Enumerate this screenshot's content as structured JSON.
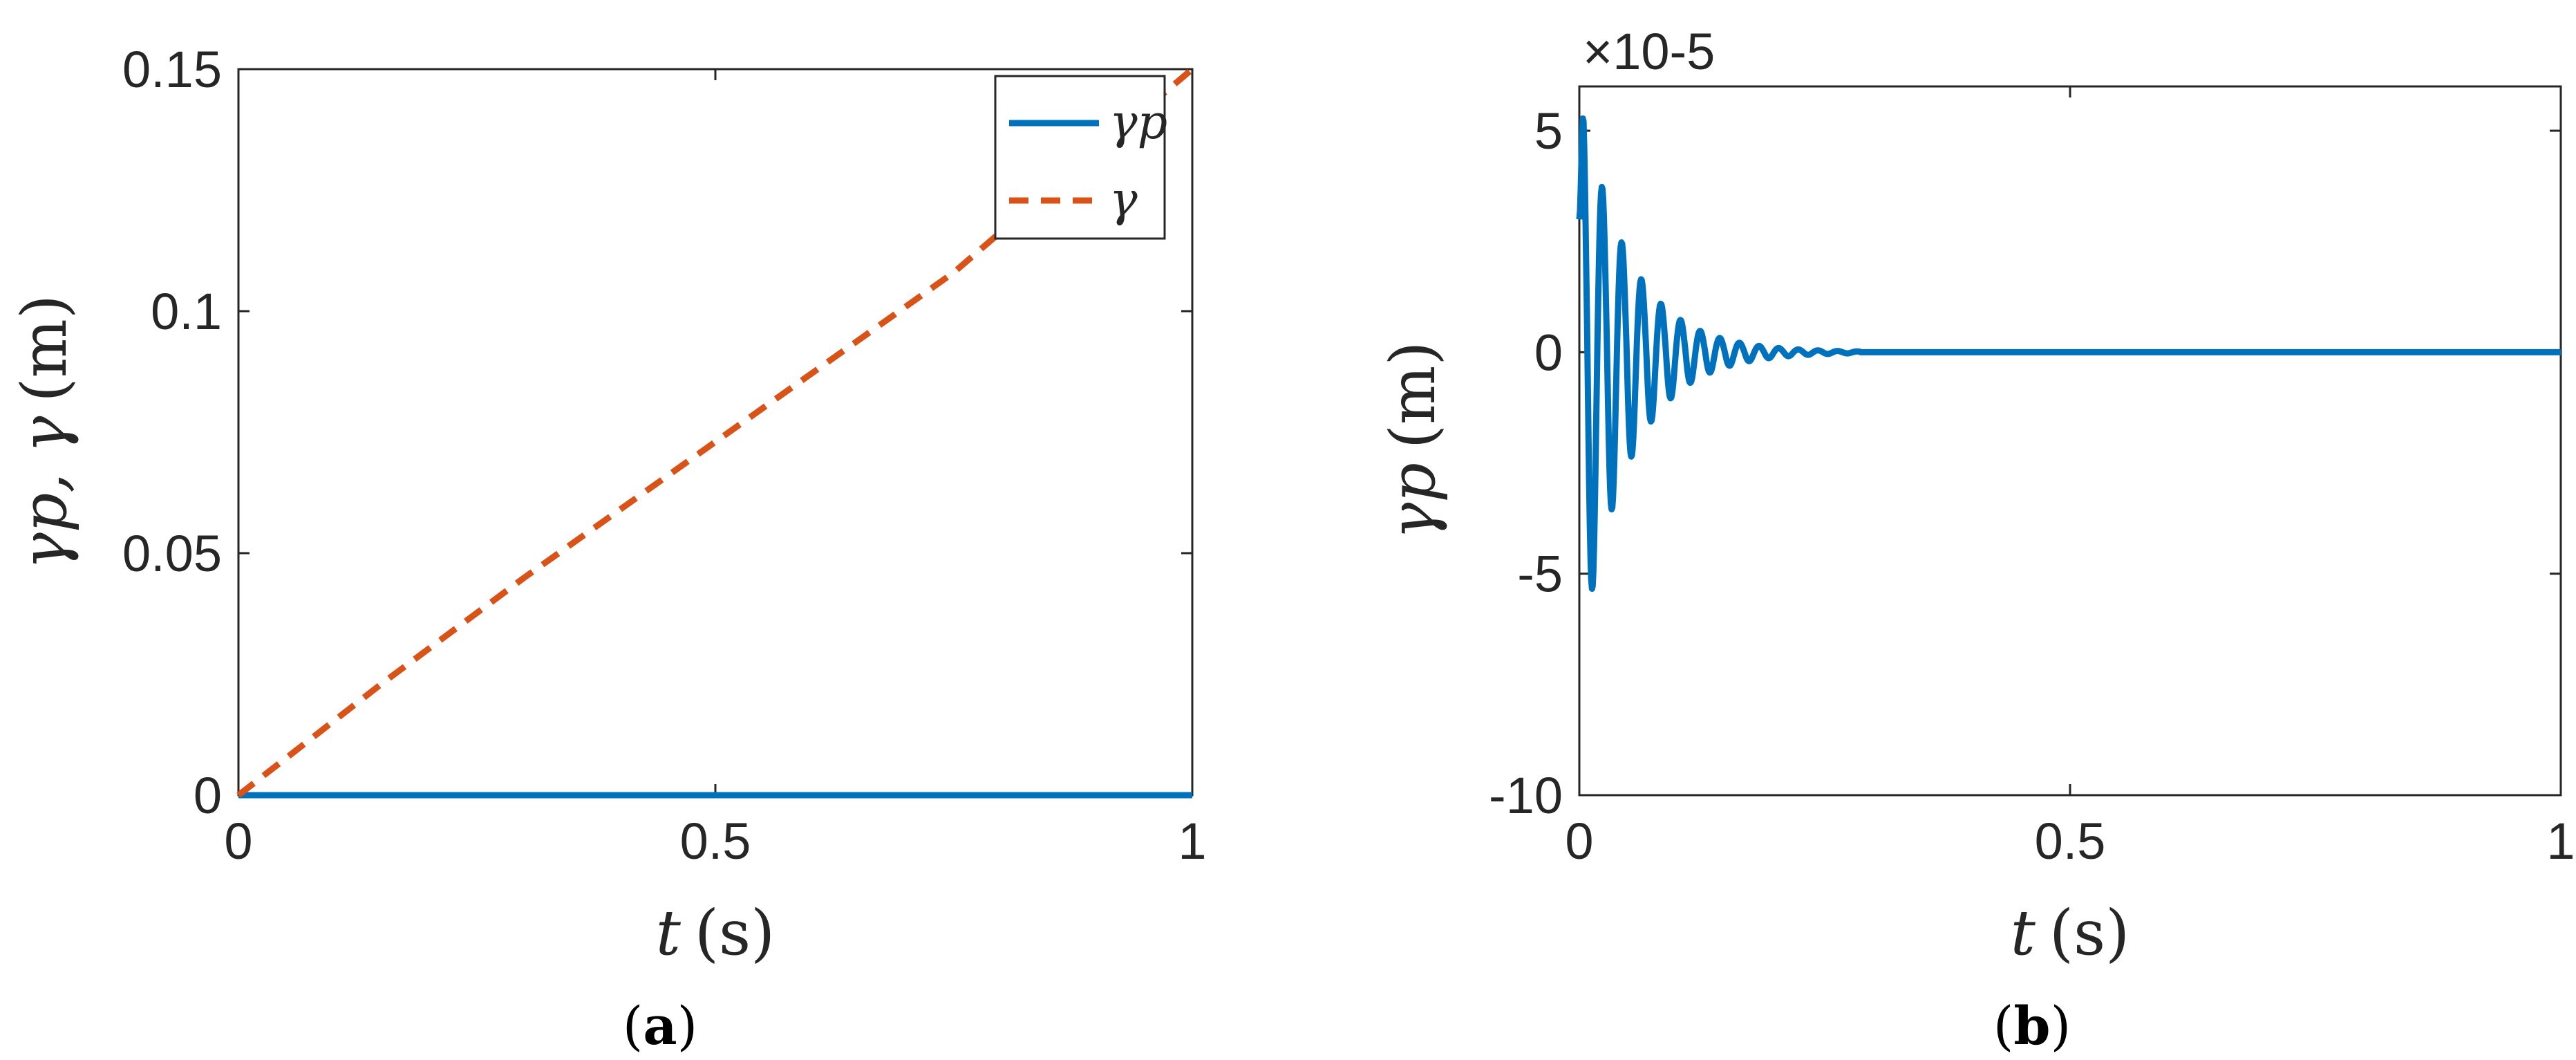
{
  "colors": {
    "series1": "#0072BD",
    "series2": "#D95319",
    "axis": "#262626"
  },
  "chart_data": [
    {
      "type": "line",
      "caption_letter": "a",
      "xlabel": {
        "var": "t",
        "unit": "(s)"
      },
      "ylabel": {
        "main": "γp, γ",
        "unit": "(m)"
      },
      "xlim": [
        0,
        1
      ],
      "ylim": [
        0,
        0.15
      ],
      "xticks": [
        0,
        0.5,
        1
      ],
      "xtick_labels": [
        "0",
        "0.5",
        "1"
      ],
      "yticks": [
        0,
        0.05,
        0.1,
        0.15
      ],
      "ytick_labels": [
        "0",
        "0.05",
        "0.1",
        "0.15"
      ],
      "grid": false,
      "legend": {
        "position": "top-right",
        "entries": [
          "γp",
          "γ"
        ]
      },
      "series": [
        {
          "name": "γp",
          "style": "solid",
          "color": "#0072BD",
          "x": [
            0,
            1
          ],
          "y": [
            0,
            0
          ]
        },
        {
          "name": "γ",
          "style": "dashed",
          "color": "#D95319",
          "x": [
            0,
            0.15,
            0.3,
            0.45,
            0.6,
            0.75,
            0.85,
            1
          ],
          "y": [
            0,
            0.023,
            0.045,
            0.066,
            0.087,
            0.108,
            0.125,
            0.15
          ]
        }
      ]
    },
    {
      "type": "line",
      "caption_letter": "b",
      "xlabel": {
        "var": "t",
        "unit": "(s)"
      },
      "ylabel": {
        "main": "γp",
        "unit": "(m)"
      },
      "exponent_label": "×10-5",
      "xlim": [
        0,
        1
      ],
      "ylim": [
        -10,
        6
      ],
      "xticks": [
        0,
        0.5,
        1
      ],
      "xtick_labels": [
        "0",
        "0.5",
        "1"
      ],
      "yticks": [
        -10,
        -5,
        0,
        5
      ],
      "ytick_labels": [
        "-10",
        "-5",
        "0",
        "5"
      ],
      "grid": false,
      "series": [
        {
          "name": "γp",
          "style": "solid",
          "color": "#0072BD",
          "signal": {
            "type": "damped-oscillation",
            "amplitude_max": 6,
            "amplitude_min": -7,
            "decay_end_t": 0.22,
            "initial_offset": 3
          }
        }
      ]
    }
  ]
}
